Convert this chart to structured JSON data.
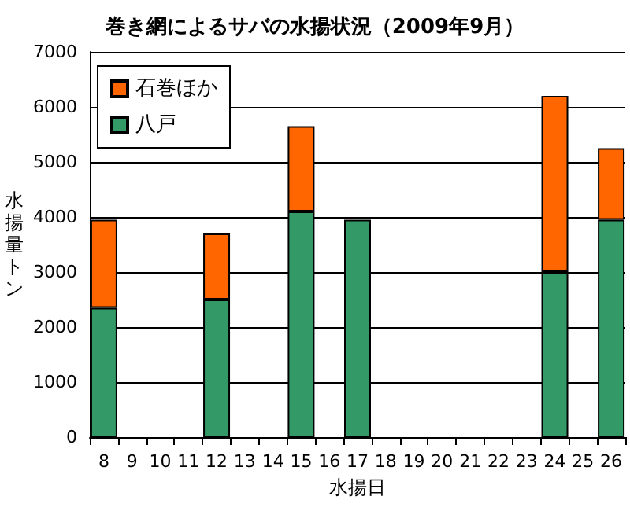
{
  "chart_data": {
    "type": "bar",
    "title": "巻き網によるサバの水揚状況（2009年9月）",
    "xlabel": "水揚日",
    "ylabel": "水揚量トン",
    "categories": [
      "8",
      "9",
      "10",
      "11",
      "12",
      "13",
      "14",
      "15",
      "16",
      "17",
      "18",
      "19",
      "20",
      "21",
      "22",
      "23",
      "24",
      "25",
      "26"
    ],
    "stacked": true,
    "series": [
      {
        "name": "八戸",
        "color": "#339966",
        "values": [
          2350,
          null,
          null,
          null,
          2500,
          null,
          null,
          4100,
          null,
          3950,
          null,
          null,
          null,
          null,
          null,
          null,
          3000,
          null,
          3950
        ]
      },
      {
        "name": "石巻ほか",
        "color": "#ff6600",
        "values": [
          1600,
          null,
          null,
          null,
          1200,
          null,
          null,
          1550,
          null,
          null,
          null,
          null,
          null,
          null,
          null,
          null,
          3200,
          null,
          1300
        ]
      }
    ],
    "ylim": [
      0,
      7000
    ],
    "yticks": [
      0,
      1000,
      2000,
      3000,
      4000,
      5000,
      6000,
      7000
    ],
    "grid": "y",
    "legend": "top left"
  }
}
